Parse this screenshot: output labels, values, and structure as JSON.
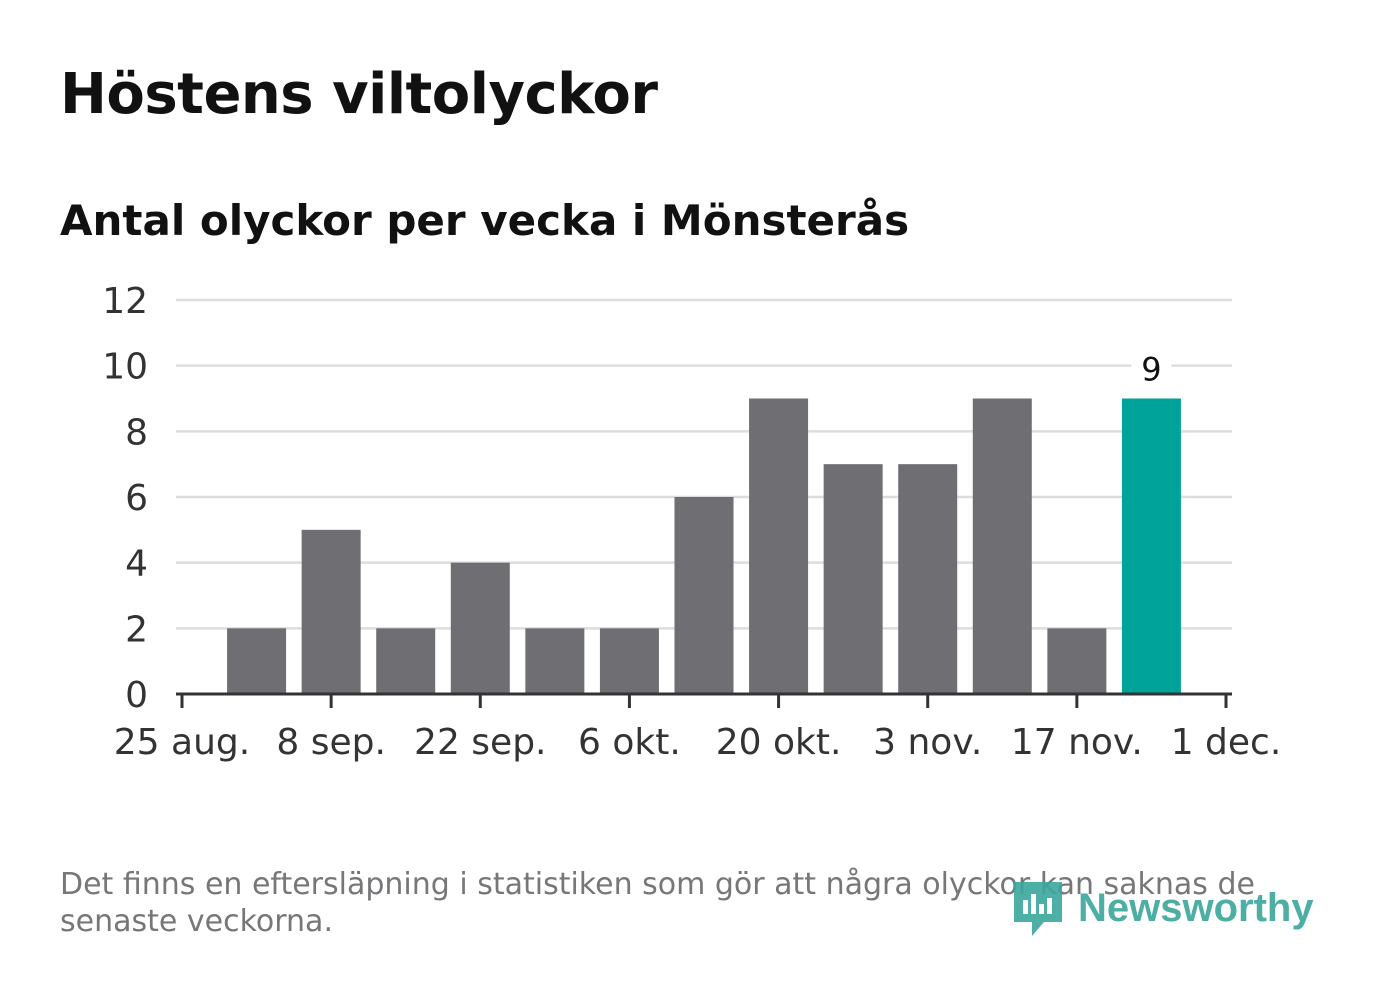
{
  "header": {
    "title": "Höstens viltolyckor",
    "subtitle": "Antal olyckor per vecka i Mönsterås"
  },
  "footer": {
    "note": "Det finns en eftersläpning i statistiken som gör att några olyckor kan saknas de senaste veckorna.",
    "brand": "Newsworthy"
  },
  "colors": {
    "bar": "#6e6e73",
    "highlight": "#00a39a",
    "grid": "#dddddd",
    "axis": "#333333"
  },
  "chart_data": {
    "type": "bar",
    "title": "Antal olyckor per vecka i Mönsterås",
    "xlabel": "",
    "ylabel": "",
    "ylim": [
      0,
      12
    ],
    "yticks": [
      0,
      2,
      4,
      6,
      8,
      10,
      12
    ],
    "xtick_labels": [
      "25 aug.",
      "8 sep.",
      "22 sep.",
      "6 okt.",
      "20 okt.",
      "3 nov.",
      "17 nov.",
      "1 dec."
    ],
    "values": [
      2,
      5,
      2,
      4,
      2,
      2,
      6,
      9,
      7,
      7,
      9,
      2,
      9
    ],
    "highlight_index": 12,
    "annotation": {
      "index": 12,
      "text": "9"
    },
    "grid": true
  }
}
